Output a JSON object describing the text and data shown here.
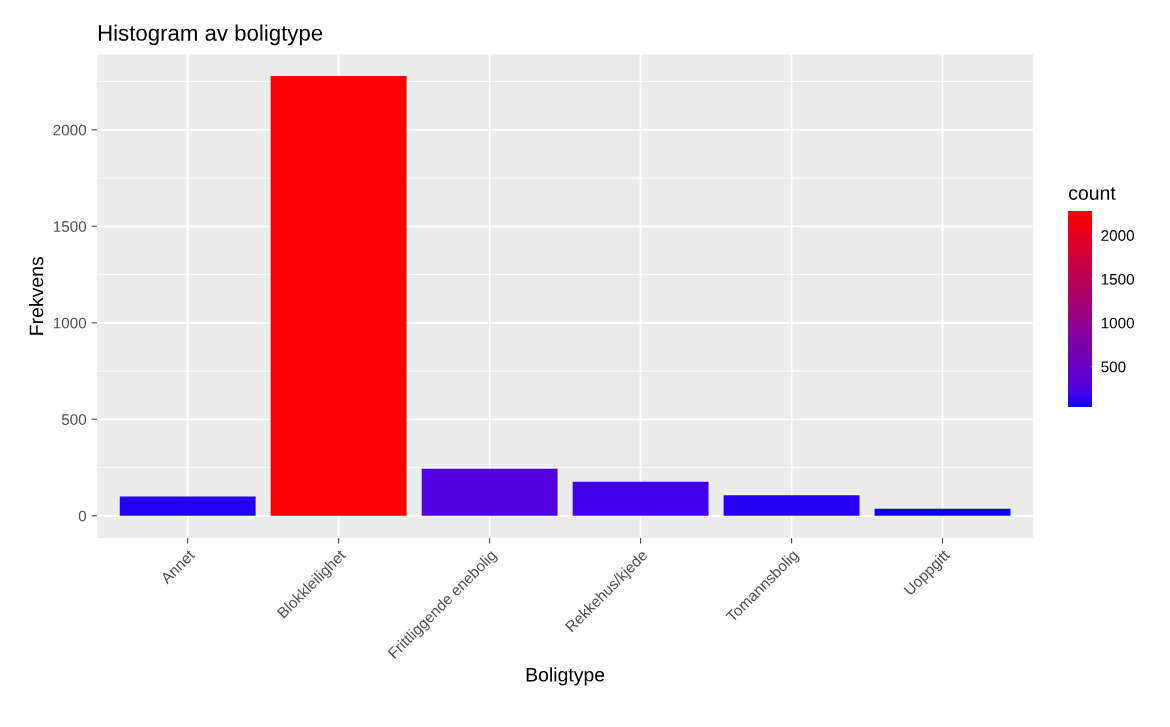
{
  "chart_data": {
    "type": "bar",
    "title": "Histogram av boligtype",
    "xlabel": "Boligtype",
    "ylabel": "Frekvens",
    "clabel": "count",
    "categories": [
      "Annet",
      "Blokkleilighet",
      "Frittliggende enebolig",
      "Rekkehus/kjede",
      "Tomannsbolig",
      "Uoppgitt"
    ],
    "values": [
      100,
      2279,
      244,
      177,
      106,
      37
    ],
    "colors": [
      "#2400f8",
      "#fb0000",
      "#5200e0",
      "#4200ea",
      "#2600f6",
      "#0c00fd"
    ],
    "ylim": [
      -115,
      2390
    ],
    "yticks": [
      0,
      500,
      1000,
      1500,
      2000
    ],
    "clim": [
      37,
      2279
    ],
    "cticks": [
      500,
      1000,
      1500,
      2000
    ],
    "grid": true
  }
}
